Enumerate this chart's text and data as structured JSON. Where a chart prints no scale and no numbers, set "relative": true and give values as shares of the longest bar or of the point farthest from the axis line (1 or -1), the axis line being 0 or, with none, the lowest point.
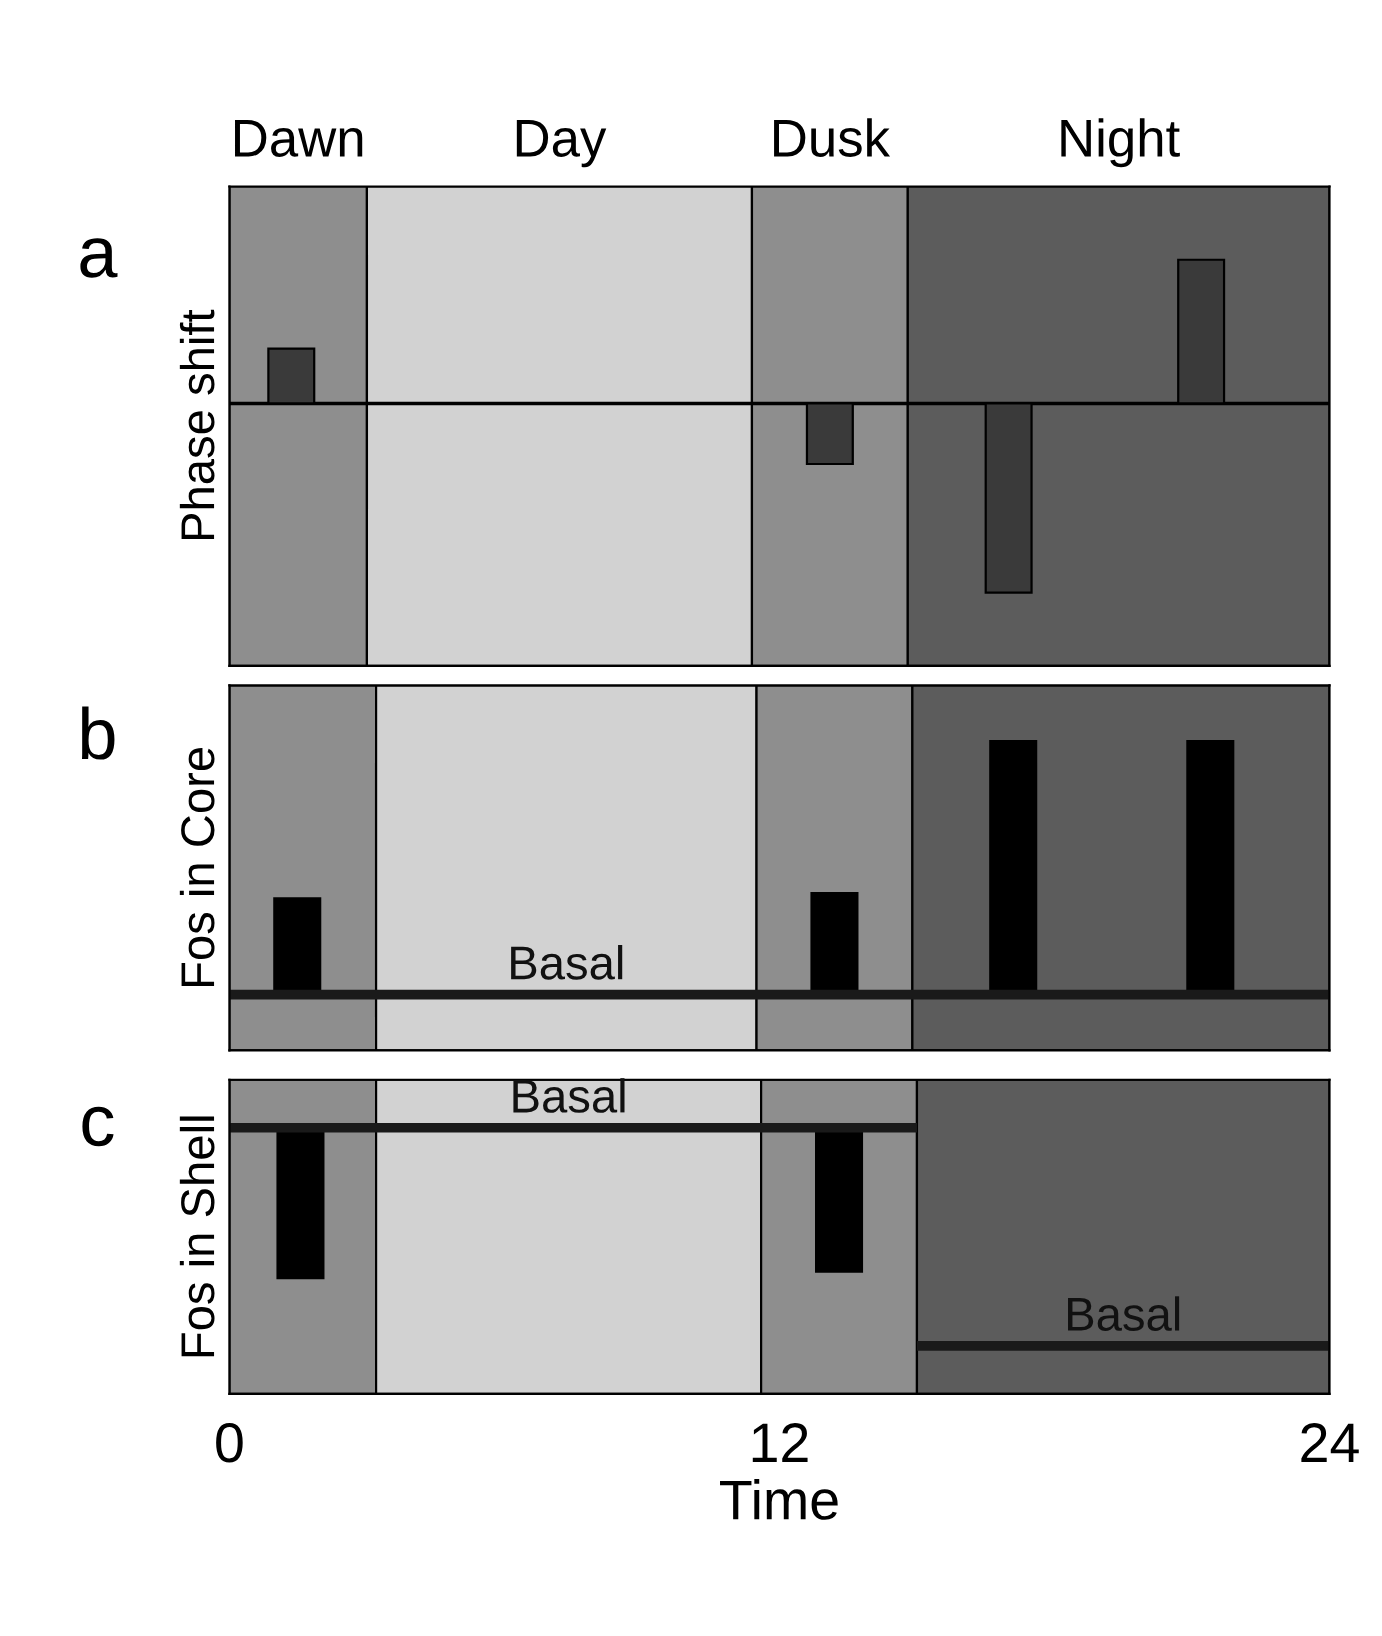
{
  "chart_data": [
    {
      "type": "bar",
      "title": "a",
      "ylabel": "Phase shift",
      "relative": true,
      "x": [
        1.35,
        13.1,
        17,
        21.2
      ],
      "values": [
        0.29,
        -0.32,
        -1,
        0.76
      ],
      "color": "#3a3a3a",
      "xlim": [
        0,
        24
      ],
      "tick_labels": false,
      "bands": [
        {
          "axis": "x",
          "from": 0,
          "to": 3,
          "label": "Dawn",
          "color": "#8e8e8e"
        },
        {
          "axis": "x",
          "from": 3,
          "to": 11.4,
          "label": "Day",
          "color": "#d2d2d2"
        },
        {
          "axis": "x",
          "from": 11.4,
          "to": 14.8,
          "label": "Dusk",
          "color": "#8e8e8e"
        },
        {
          "axis": "x",
          "from": 14.8,
          "to": 24,
          "label": "Night",
          "color": "#5c5c5c"
        }
      ]
    },
    {
      "type": "bar",
      "title": "b",
      "ylabel": "Fos in Core",
      "relative": true,
      "xlim": [
        0,
        24
      ],
      "tick_labels": false,
      "series": [
        {
          "type": "bar",
          "color": "#000000",
          "x": [
            1.48,
            13.2,
            17.1,
            21.4
          ],
          "values": [
            0.38,
            0.4,
            1,
            1
          ]
        },
        {
          "type": "line",
          "name": "Basal",
          "color": "#1a1a1a",
          "x": [
            0,
            24
          ],
          "values": [
            0,
            0
          ]
        }
      ],
      "bands": [
        {
          "axis": "x",
          "from": 0,
          "to": 3.2,
          "color": "#8e8e8e"
        },
        {
          "axis": "x",
          "from": 3.2,
          "to": 11.5,
          "color": "#d2d2d2"
        },
        {
          "axis": "x",
          "from": 11.5,
          "to": 14.9,
          "color": "#8e8e8e"
        },
        {
          "axis": "x",
          "from": 14.9,
          "to": 24,
          "color": "#5c5c5c"
        }
      ]
    },
    {
      "type": "bar",
      "title": "c",
      "ylabel": "Fos in Shell",
      "xlabel": "Time",
      "relative": true,
      "xlim": [
        0,
        24
      ],
      "xticks": [
        0,
        12,
        24
      ],
      "tick_labels": "x",
      "series": [
        {
          "type": "bar",
          "color": "#000000",
          "x": [
            1.55,
            13.3
          ],
          "values": [
            -0.69,
            -0.66
          ]
        },
        {
          "type": "line",
          "name": "Basal",
          "color": "#1a1a1a",
          "x": [
            0,
            15
          ],
          "values": [
            0,
            0
          ]
        },
        {
          "type": "line",
          "name": "Basal",
          "color": "#1a1a1a",
          "x": [
            15,
            24
          ],
          "values": [
            -1,
            -1
          ]
        }
      ],
      "bands": [
        {
          "axis": "x",
          "from": 0,
          "to": 3.2,
          "color": "#8e8e8e"
        },
        {
          "axis": "x",
          "from": 3.2,
          "to": 11.6,
          "color": "#d2d2d2"
        },
        {
          "axis": "x",
          "from": 11.6,
          "to": 15,
          "color": "#8e8e8e"
        },
        {
          "axis": "x",
          "from": 15,
          "to": 24,
          "color": "#5c5c5c"
        }
      ]
    }
  ]
}
